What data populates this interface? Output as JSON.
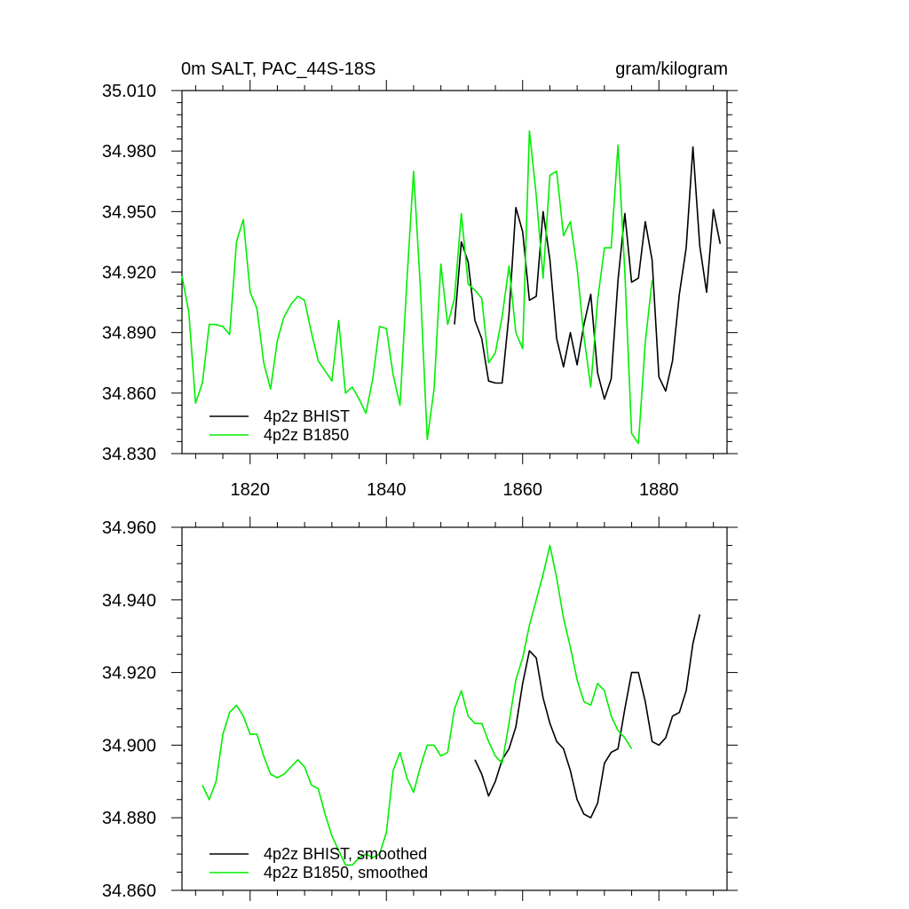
{
  "colors": {
    "bhist": "#000000",
    "b1850": "#00ee00",
    "frame": "#000000",
    "background": "#ffffff"
  },
  "header": {
    "left_title": "0m SALT, PAC_44S-18S",
    "right_title": "gram/kilogram"
  },
  "chart_data": [
    {
      "type": "line",
      "xlim": [
        1810,
        1890
      ],
      "ylim": [
        34.83,
        35.01
      ],
      "x_ticks": [
        1820,
        1840,
        1860,
        1880
      ],
      "x_tick_labels": [
        "1820",
        "1840",
        "1860",
        "1880"
      ],
      "y_ticks": [
        34.83,
        34.86,
        34.89,
        34.92,
        34.95,
        34.98,
        35.01
      ],
      "y_tick_labels": [
        "34.830",
        "34.860",
        "34.890",
        "34.920",
        "34.950",
        "34.980",
        "35.010"
      ],
      "grid": false,
      "legend_position": "bottom-left",
      "legend": [
        "4p2z BHIST",
        "4p2z B1850"
      ],
      "series": [
        {
          "name": "4p2z BHIST",
          "color": "#000000",
          "x": [
            1850,
            1851,
            1852,
            1853,
            1854,
            1855,
            1856,
            1857,
            1858,
            1859,
            1860,
            1861,
            1862,
            1863,
            1864,
            1865,
            1866,
            1867,
            1868,
            1869,
            1870,
            1871,
            1872,
            1873,
            1874,
            1875,
            1876,
            1877,
            1878,
            1879,
            1880,
            1881,
            1882,
            1883,
            1884,
            1885,
            1886,
            1887,
            1888,
            1889
          ],
          "y": [
            34.894,
            34.935,
            34.925,
            34.896,
            34.887,
            34.866,
            34.865,
            34.865,
            34.899,
            34.952,
            34.94,
            34.906,
            34.908,
            34.95,
            34.926,
            34.887,
            34.873,
            34.89,
            34.874,
            34.894,
            34.909,
            34.87,
            34.857,
            34.867,
            34.916,
            34.949,
            34.915,
            34.917,
            34.945,
            34.926,
            34.868,
            34.861,
            34.876,
            34.909,
            34.932,
            34.982,
            34.933,
            34.91,
            34.951,
            34.934
          ]
        },
        {
          "name": "4p2z B1850",
          "color": "#00ee00",
          "x": [
            1810,
            1811,
            1812,
            1813,
            1814,
            1815,
            1816,
            1817,
            1818,
            1819,
            1820,
            1821,
            1822,
            1823,
            1824,
            1825,
            1826,
            1827,
            1828,
            1829,
            1830,
            1831,
            1832,
            1833,
            1834,
            1835,
            1836,
            1837,
            1838,
            1839,
            1840,
            1841,
            1842,
            1843,
            1844,
            1845,
            1846,
            1847,
            1848,
            1849,
            1850,
            1851,
            1852,
            1853,
            1854,
            1855,
            1856,
            1857,
            1858,
            1859,
            1860,
            1861,
            1862,
            1863,
            1864,
            1865,
            1866,
            1867,
            1868,
            1869,
            1870,
            1871,
            1872,
            1873,
            1874,
            1875,
            1876,
            1877,
            1878,
            1879
          ],
          "y": [
            34.918,
            34.9,
            34.855,
            34.865,
            34.894,
            34.894,
            34.893,
            34.889,
            34.935,
            34.946,
            34.91,
            34.902,
            34.875,
            34.862,
            34.886,
            34.898,
            34.904,
            34.908,
            34.906,
            34.89,
            34.876,
            34.871,
            34.866,
            34.896,
            34.86,
            34.863,
            34.857,
            34.85,
            34.867,
            34.893,
            34.892,
            34.869,
            34.854,
            34.915,
            34.97,
            34.912,
            34.837,
            34.862,
            34.924,
            34.894,
            34.907,
            34.949,
            34.914,
            34.911,
            34.907,
            34.875,
            34.88,
            34.898,
            34.923,
            34.89,
            34.882,
            34.99,
            34.958,
            34.917,
            34.968,
            34.97,
            34.938,
            34.945,
            34.922,
            34.888,
            34.863,
            34.906,
            34.932,
            34.932,
            34.983,
            34.92,
            34.84,
            34.835,
            34.885,
            34.916
          ]
        }
      ]
    },
    {
      "type": "line",
      "xlim": [
        1810,
        1890
      ],
      "ylim": [
        34.86,
        34.96
      ],
      "x_ticks": [
        1820,
        1840,
        1860,
        1880
      ],
      "y_ticks": [
        34.86,
        34.88,
        34.9,
        34.92,
        34.94,
        34.96
      ],
      "y_tick_labels": [
        "34.860",
        "34.880",
        "34.900",
        "34.920",
        "34.940",
        "34.960"
      ],
      "grid": false,
      "legend_position": "bottom-left",
      "legend": [
        "4p2z BHIST, smoothed",
        "4p2z B1850, smoothed"
      ],
      "series": [
        {
          "name": "4p2z BHIST, smoothed",
          "color": "#000000",
          "x": [
            1853,
            1854,
            1855,
            1856,
            1857,
            1858,
            1859,
            1860,
            1861,
            1862,
            1863,
            1864,
            1865,
            1866,
            1867,
            1868,
            1869,
            1870,
            1871,
            1872,
            1873,
            1874,
            1875,
            1876,
            1877,
            1878,
            1879,
            1880,
            1881,
            1882,
            1883,
            1884,
            1885,
            1886
          ],
          "y": [
            34.896,
            34.892,
            34.886,
            34.89,
            34.896,
            34.899,
            34.905,
            34.917,
            34.926,
            34.924,
            34.913,
            34.906,
            34.901,
            34.899,
            34.893,
            34.885,
            34.881,
            34.88,
            34.884,
            34.895,
            34.898,
            34.899,
            34.91,
            34.92,
            34.92,
            34.912,
            34.901,
            34.9,
            34.902,
            34.908,
            34.909,
            34.915,
            34.928,
            34.936
          ]
        },
        {
          "name": "4p2z B1850, smoothed",
          "color": "#00ee00",
          "x": [
            1813,
            1814,
            1815,
            1816,
            1817,
            1818,
            1819,
            1820,
            1821,
            1822,
            1823,
            1824,
            1825,
            1826,
            1827,
            1828,
            1829,
            1830,
            1831,
            1832,
            1833,
            1834,
            1835,
            1836,
            1837,
            1838,
            1839,
            1840,
            1841,
            1842,
            1843,
            1844,
            1845,
            1846,
            1847,
            1848,
            1849,
            1850,
            1851,
            1852,
            1853,
            1854,
            1855,
            1856,
            1857,
            1858,
            1859,
            1860,
            1861,
            1862,
            1863,
            1864,
            1865,
            1866,
            1867,
            1868,
            1869,
            1870,
            1871,
            1872,
            1873,
            1874,
            1875,
            1876
          ],
          "y": [
            34.889,
            34.885,
            34.89,
            34.903,
            34.909,
            34.911,
            34.908,
            34.903,
            34.903,
            34.897,
            34.892,
            34.891,
            34.892,
            34.894,
            34.896,
            34.894,
            34.889,
            34.888,
            34.881,
            34.875,
            34.871,
            34.867,
            34.867,
            34.869,
            34.87,
            34.869,
            34.87,
            34.876,
            34.893,
            34.898,
            34.891,
            34.887,
            34.894,
            34.9,
            34.9,
            34.897,
            34.898,
            34.91,
            34.915,
            34.908,
            34.906,
            34.906,
            34.901,
            34.897,
            34.895,
            34.906,
            34.918,
            34.924,
            34.933,
            34.94,
            34.947,
            34.955,
            34.946,
            34.935,
            34.927,
            34.918,
            34.912,
            34.911,
            34.917,
            34.915,
            34.908,
            34.904,
            34.902,
            34.899
          ]
        }
      ]
    }
  ]
}
